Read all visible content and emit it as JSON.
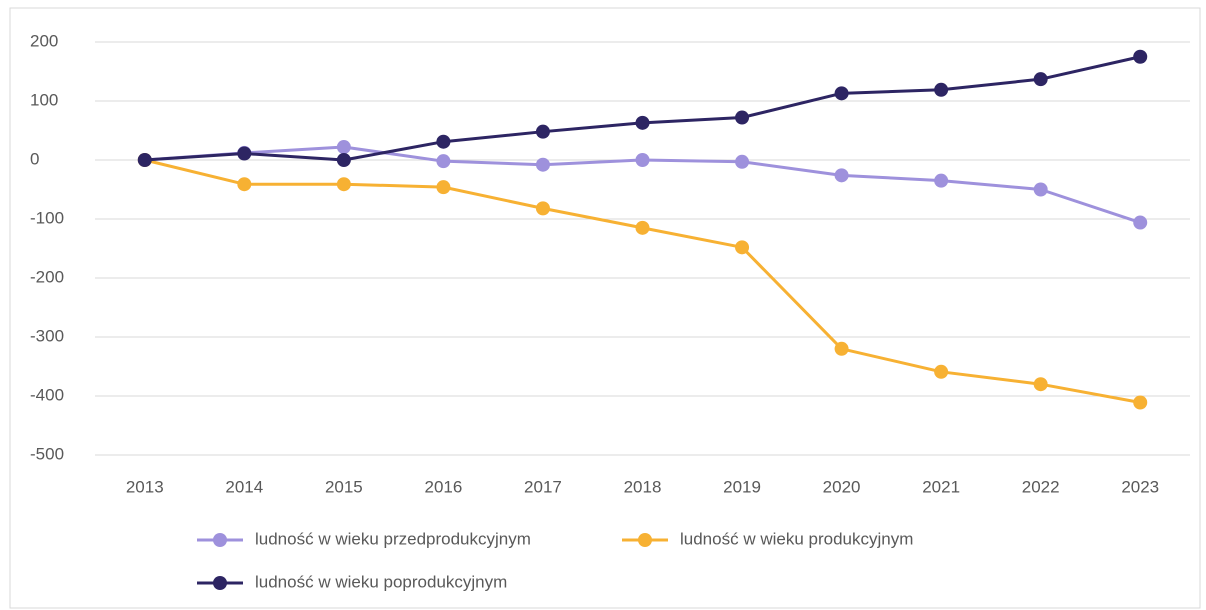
{
  "chart_data": {
    "type": "line",
    "categories": [
      "2013",
      "2014",
      "2015",
      "2016",
      "2017",
      "2018",
      "2019",
      "2020",
      "2021",
      "2022",
      "2023"
    ],
    "series": [
      {
        "name": "ludność w wieku przedprodukcyjnym",
        "color": "#9e91dc",
        "values": [
          0,
          12,
          22,
          -2,
          -8,
          0,
          -3,
          -26,
          -35,
          -50,
          -106
        ]
      },
      {
        "name": "ludność w wieku produkcyjnym",
        "color": "#f7b133",
        "values": [
          0,
          -41,
          -41,
          -46,
          -82,
          -115,
          -148,
          -320,
          -359,
          -380,
          -411
        ]
      },
      {
        "name": "ludność w wieku poprodukcyjnym",
        "color": "#2d2563",
        "values": [
          0,
          11,
          0,
          31,
          48,
          63,
          72,
          113,
          119,
          137,
          175
        ]
      }
    ],
    "ylim": [
      -500,
      200
    ],
    "yticks": [
      -500,
      -400,
      -300,
      -200,
      -100,
      0,
      100,
      200
    ],
    "grid": true
  }
}
